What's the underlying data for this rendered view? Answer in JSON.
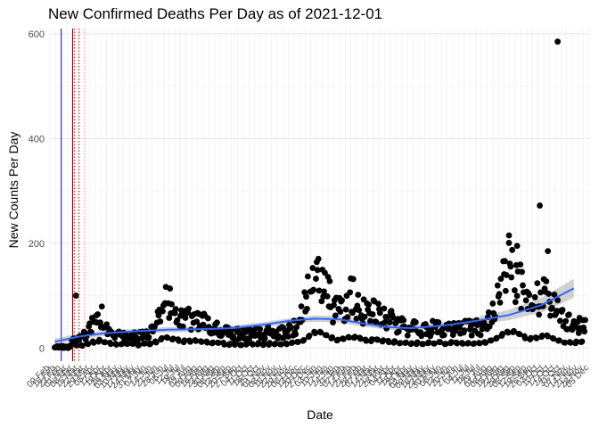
{
  "chart_data": {
    "type": "scatter",
    "title": "New Confirmed Deaths Per Day as of 2021-12-01",
    "xlabel": "Date",
    "ylabel": "New Counts Per Day",
    "xlim_days_since_2020_02_15": [
      -6,
      660
    ],
    "ylim": [
      -25,
      610
    ],
    "y_ticks": [
      0,
      200,
      400,
      600
    ],
    "x_tick_labels": [
      "09 Feb",
      "16 Feb",
      "23 Feb",
      "01 Mar",
      "08 Mar",
      "15 Mar",
      "22 Mar",
      "29 Mar",
      "05 Apr",
      "12 Apr",
      "19 Apr",
      "26 Apr",
      "03 May",
      "10 May",
      "17 May",
      "24 May",
      "31 May",
      "07 Jun",
      "14 Jun",
      "21 Jun",
      "28 Jun",
      "05 Jul",
      "12 Jul",
      "19 Jul",
      "26 Jul",
      "02 Aug",
      "09 Aug",
      "16 Aug",
      "23 Aug",
      "30 Aug",
      "06 Sep",
      "13 Sep",
      "20 Sep",
      "27 Sep",
      "04 Oct",
      "11 Oct",
      "18 Oct",
      "25 Oct",
      "01 Nov",
      "08 Nov",
      "15 Nov",
      "22 Nov",
      "29 Nov",
      "06 Dec",
      "13 Dec",
      "20 Dec",
      "27 Dec",
      "03 Jan",
      "10 Jan",
      "17 Jan",
      "24 Jan",
      "31 Jan",
      "07 Feb",
      "14 Feb",
      "21 Feb",
      "28 Feb",
      "07 Mar",
      "14 Mar",
      "21 Mar",
      "28 Mar",
      "04 Apr",
      "11 Apr",
      "18 Apr",
      "25 Apr",
      "02 May",
      "09 May",
      "16 May",
      "23 May",
      "30 May",
      "06 Jun",
      "13 Jun",
      "20 Jun",
      "27 Jun",
      "04 Jul",
      "11 Jul",
      "18 Jul",
      "25 Jul",
      "01 Aug",
      "08 Aug",
      "15 Aug",
      "22 Aug",
      "29 Aug",
      "05 Sep",
      "12 Sep",
      "19 Sep",
      "26 Sep",
      "03 Oct",
      "10 Oct",
      "17 Oct",
      "24 Oct",
      "31 Oct",
      "07 Nov",
      "14 Nov",
      "21 Nov",
      "28 Nov",
      "05 Dec"
    ],
    "vertical_lines": [
      {
        "day": 8,
        "color": "#0000cc",
        "style": "solid"
      },
      {
        "day": 22,
        "color": "#8b0000",
        "style": "solid"
      },
      {
        "day": 24,
        "color": "#cc0000",
        "style": "dotted"
      },
      {
        "day": 30,
        "color": "#cc0000",
        "style": "dotted"
      },
      {
        "day": 37,
        "color": "#ff8c8c",
        "style": "dotted"
      }
    ],
    "smooth_line": {
      "color": "#3366ff",
      "x": [
        0,
        30,
        60,
        100,
        140,
        180,
        220,
        260,
        290,
        320,
        350,
        380,
        410,
        440,
        480,
        520,
        560,
        600,
        640
      ],
      "y": [
        12,
        22,
        28,
        32,
        35,
        36,
        38,
        45,
        52,
        56,
        55,
        47,
        40,
        38,
        43,
        52,
        63,
        82,
        114
      ],
      "band": [
        6,
        6,
        5,
        5,
        5,
        5,
        5,
        5,
        5,
        6,
        6,
        6,
        5,
        5,
        6,
        7,
        10,
        14,
        18
      ]
    },
    "peaks": [
      {
        "center": 55,
        "width": 12,
        "height": 40
      },
      {
        "center": 138,
        "width": 14,
        "height": 60
      },
      {
        "center": 172,
        "width": 25,
        "height": 30
      },
      {
        "center": 325,
        "width": 18,
        "height": 115
      },
      {
        "center": 365,
        "width": 14,
        "height": 55
      },
      {
        "center": 395,
        "width": 25,
        "height": 30
      },
      {
        "center": 563,
        "width": 18,
        "height": 110
      },
      {
        "center": 604,
        "width": 16,
        "height": 60
      }
    ],
    "outliers": [
      {
        "day": 620,
        "value": 585
      },
      {
        "day": 598,
        "value": 272
      },
      {
        "day": 560,
        "value": 215
      },
      {
        "day": 608,
        "value": 185
      },
      {
        "day": 570,
        "value": 195
      },
      {
        "day": 26,
        "value": 100
      }
    ],
    "point_count": 655
  }
}
